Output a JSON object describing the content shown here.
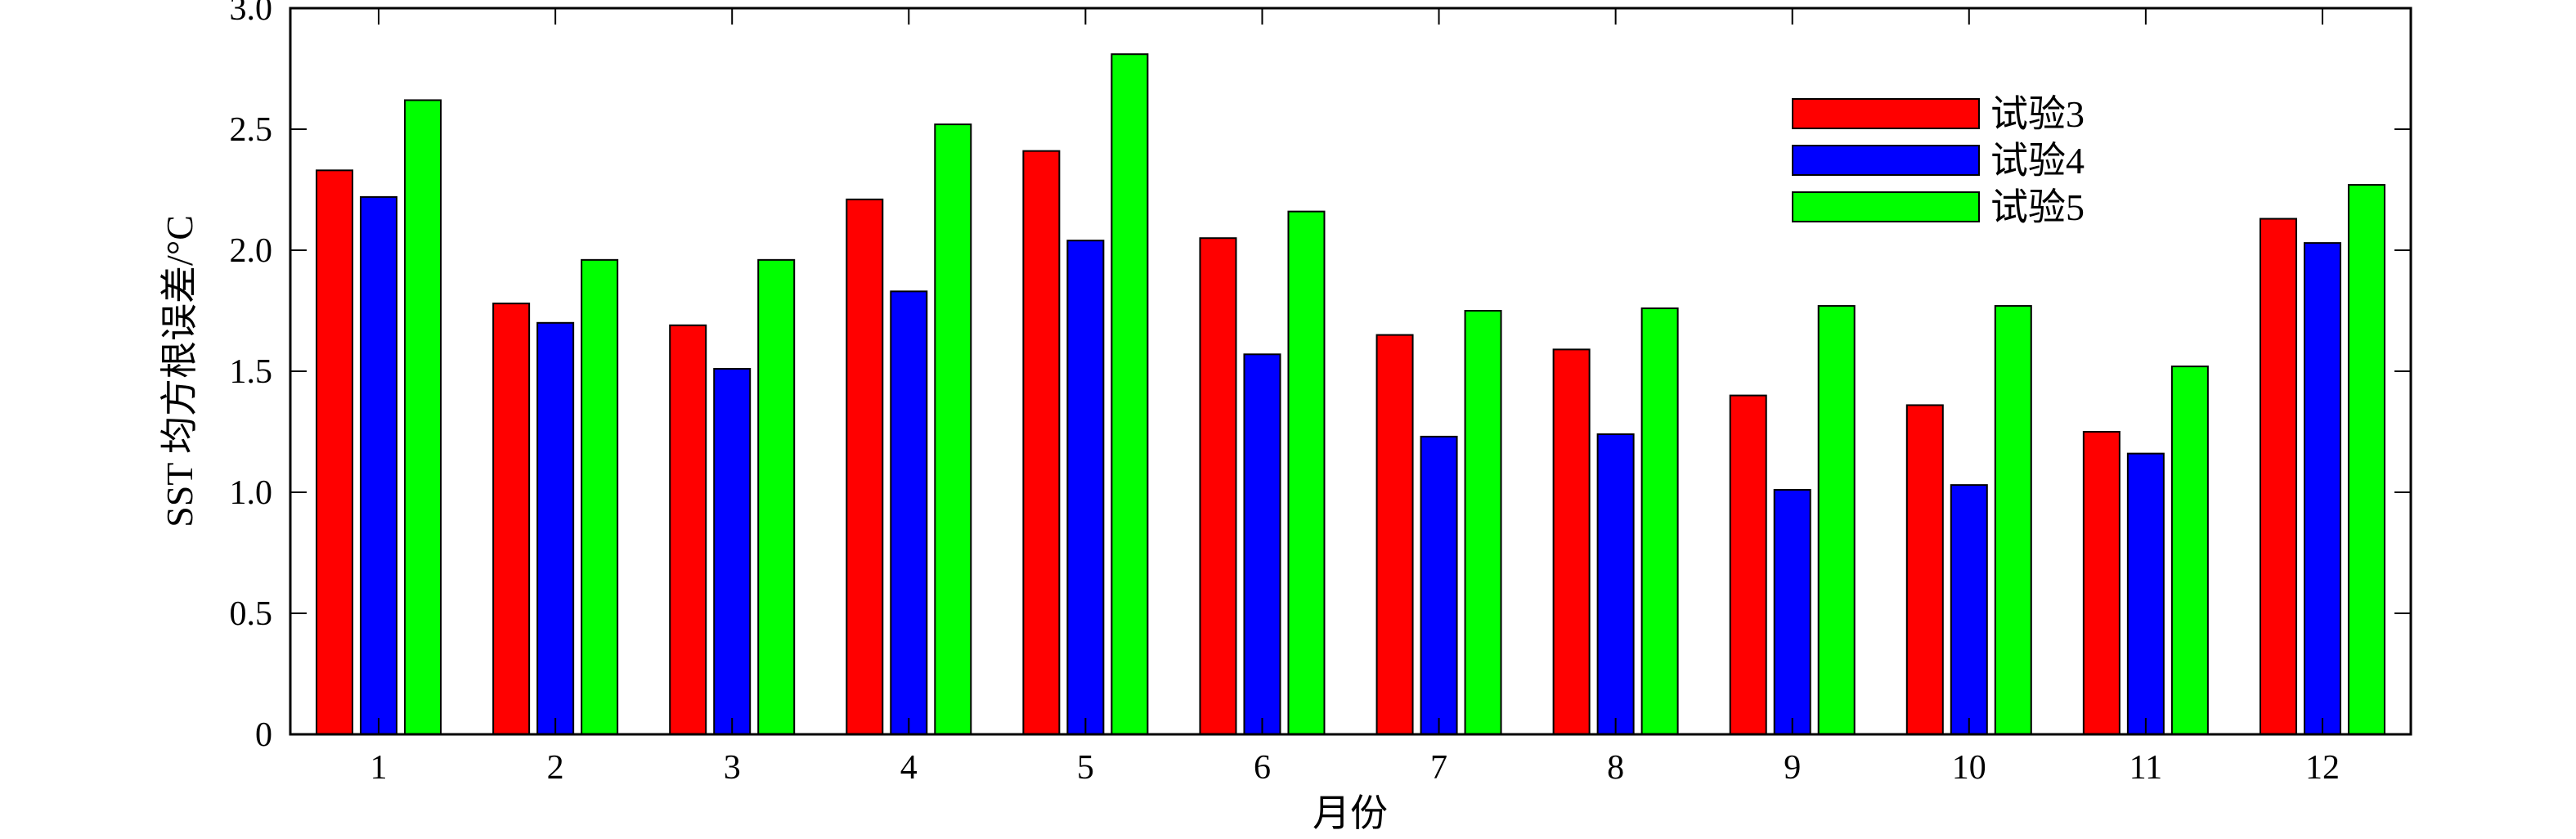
{
  "chart_data": {
    "type": "bar",
    "xlabel": "月份",
    "ylabel": "SST 均方根误差/°C",
    "ylim": [
      0,
      3.0
    ],
    "yticks": [
      "0",
      "0.5",
      "1.0",
      "1.5",
      "2.0",
      "2.5",
      "3.0"
    ],
    "ytick_values": [
      0,
      0.5,
      1.0,
      1.5,
      2.0,
      2.5,
      3.0
    ],
    "categories": [
      "1",
      "2",
      "3",
      "4",
      "5",
      "6",
      "7",
      "8",
      "9",
      "10",
      "11",
      "12"
    ],
    "legend_position": "top-right",
    "grid": false,
    "series": [
      {
        "name": "试验3",
        "color": "#ff0000",
        "values": [
          2.33,
          1.78,
          1.69,
          2.21,
          2.41,
          2.05,
          1.65,
          1.59,
          1.4,
          1.36,
          1.25,
          2.13
        ]
      },
      {
        "name": "试验4",
        "color": "#0000ff",
        "values": [
          2.22,
          1.7,
          1.51,
          1.83,
          2.04,
          1.57,
          1.23,
          1.24,
          1.01,
          1.03,
          1.16,
          2.03
        ]
      },
      {
        "name": "试验5",
        "color": "#00ff00",
        "values": [
          2.62,
          1.96,
          1.96,
          2.52,
          2.81,
          2.16,
          1.75,
          1.76,
          1.77,
          1.77,
          1.52,
          2.27
        ]
      }
    ]
  }
}
